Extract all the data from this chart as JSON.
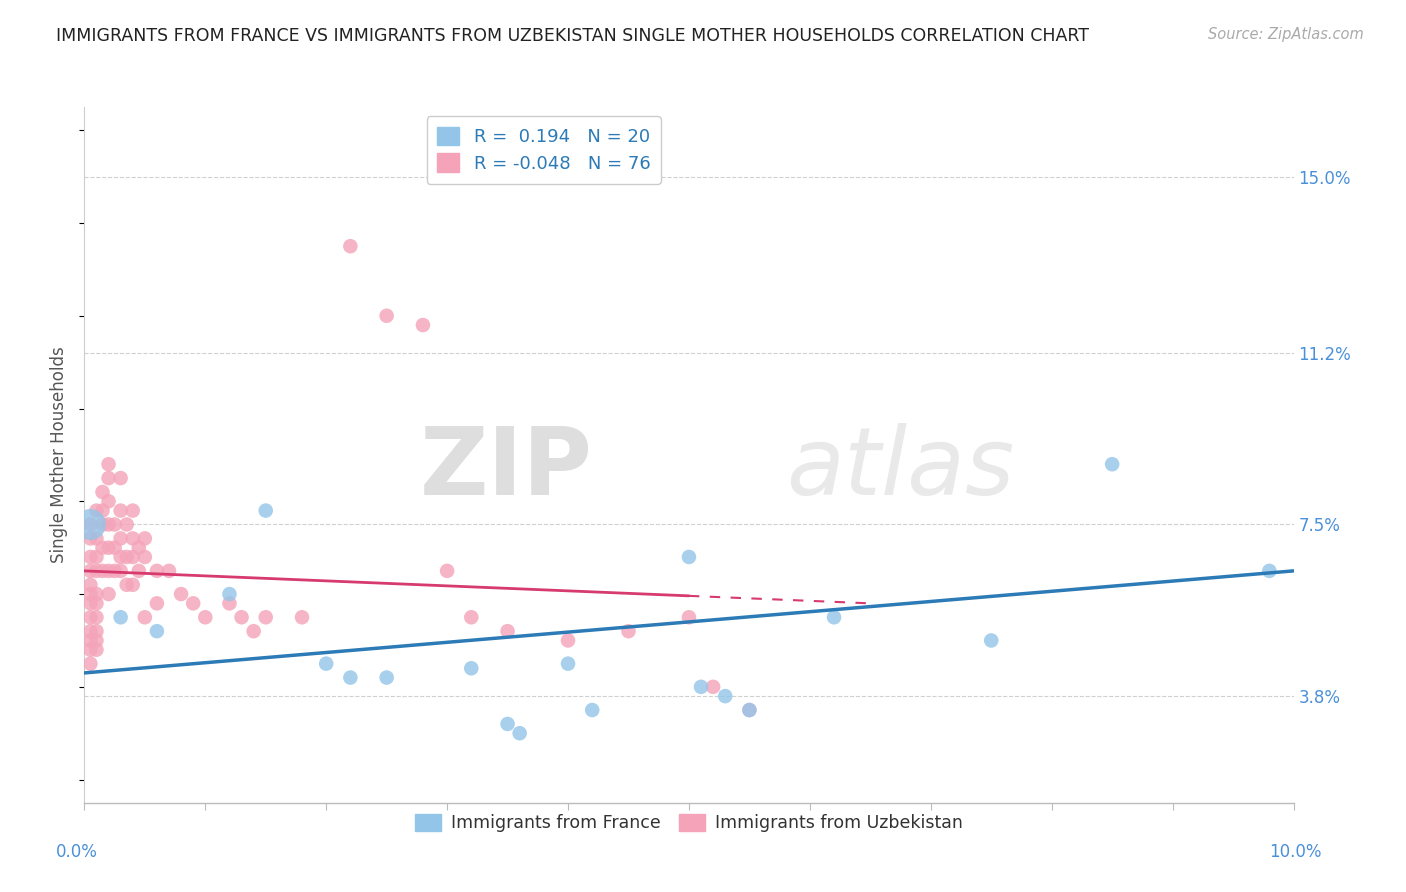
{
  "title": "IMMIGRANTS FROM FRANCE VS IMMIGRANTS FROM UZBEKISTAN SINGLE MOTHER HOUSEHOLDS CORRELATION CHART",
  "source": "Source: ZipAtlas.com",
  "ylabel": "Single Mother Households",
  "y_ticks": [
    3.8,
    7.5,
    11.2,
    15.0
  ],
  "y_tick_labels": [
    "3.8%",
    "7.5%",
    "11.2%",
    "15.0%"
  ],
  "xlim": [
    0.0,
    10.0
  ],
  "ylim": [
    1.5,
    16.5
  ],
  "france_color": "#92c5e8",
  "uzbekistan_color": "#f4a3b8",
  "france_R": 0.194,
  "france_N": 20,
  "uzbekistan_R": -0.048,
  "uzbekistan_N": 76,
  "france_points": [
    [
      0.3,
      5.5
    ],
    [
      0.6,
      5.2
    ],
    [
      1.2,
      6.0
    ],
    [
      1.5,
      7.8
    ],
    [
      2.0,
      4.5
    ],
    [
      2.2,
      4.2
    ],
    [
      2.5,
      4.2
    ],
    [
      3.2,
      4.4
    ],
    [
      3.5,
      3.2
    ],
    [
      3.6,
      3.0
    ],
    [
      4.0,
      4.5
    ],
    [
      4.2,
      3.5
    ],
    [
      5.0,
      6.8
    ],
    [
      5.1,
      4.0
    ],
    [
      5.3,
      3.8
    ],
    [
      5.5,
      3.5
    ],
    [
      6.2,
      5.5
    ],
    [
      7.5,
      5.0
    ],
    [
      8.5,
      8.8
    ],
    [
      9.8,
      6.5
    ]
  ],
  "uzbekistan_points": [
    [
      0.05,
      7.5
    ],
    [
      0.05,
      7.2
    ],
    [
      0.05,
      6.8
    ],
    [
      0.05,
      6.5
    ],
    [
      0.05,
      6.2
    ],
    [
      0.05,
      6.0
    ],
    [
      0.05,
      5.8
    ],
    [
      0.05,
      5.5
    ],
    [
      0.05,
      5.2
    ],
    [
      0.05,
      5.0
    ],
    [
      0.05,
      4.8
    ],
    [
      0.05,
      4.5
    ],
    [
      0.1,
      7.8
    ],
    [
      0.1,
      7.2
    ],
    [
      0.1,
      6.8
    ],
    [
      0.1,
      6.5
    ],
    [
      0.1,
      6.0
    ],
    [
      0.1,
      5.8
    ],
    [
      0.1,
      5.5
    ],
    [
      0.1,
      5.2
    ],
    [
      0.1,
      5.0
    ],
    [
      0.1,
      4.8
    ],
    [
      0.15,
      8.2
    ],
    [
      0.15,
      7.8
    ],
    [
      0.15,
      7.5
    ],
    [
      0.15,
      7.0
    ],
    [
      0.15,
      6.5
    ],
    [
      0.2,
      8.8
    ],
    [
      0.2,
      8.5
    ],
    [
      0.2,
      8.0
    ],
    [
      0.2,
      7.5
    ],
    [
      0.2,
      7.0
    ],
    [
      0.2,
      6.5
    ],
    [
      0.2,
      6.0
    ],
    [
      0.25,
      7.5
    ],
    [
      0.25,
      7.0
    ],
    [
      0.25,
      6.5
    ],
    [
      0.3,
      8.5
    ],
    [
      0.3,
      7.8
    ],
    [
      0.3,
      7.2
    ],
    [
      0.3,
      6.8
    ],
    [
      0.3,
      6.5
    ],
    [
      0.35,
      7.5
    ],
    [
      0.35,
      6.8
    ],
    [
      0.35,
      6.2
    ],
    [
      0.4,
      7.8
    ],
    [
      0.4,
      7.2
    ],
    [
      0.4,
      6.8
    ],
    [
      0.4,
      6.2
    ],
    [
      0.45,
      7.0
    ],
    [
      0.45,
      6.5
    ],
    [
      0.5,
      7.2
    ],
    [
      0.5,
      6.8
    ],
    [
      0.5,
      5.5
    ],
    [
      0.6,
      6.5
    ],
    [
      0.6,
      5.8
    ],
    [
      0.7,
      6.5
    ],
    [
      0.8,
      6.0
    ],
    [
      0.9,
      5.8
    ],
    [
      1.0,
      5.5
    ],
    [
      1.2,
      5.8
    ],
    [
      1.3,
      5.5
    ],
    [
      1.4,
      5.2
    ],
    [
      1.5,
      5.5
    ],
    [
      1.8,
      5.5
    ],
    [
      2.2,
      13.5
    ],
    [
      2.5,
      12.0
    ],
    [
      2.8,
      11.8
    ],
    [
      3.0,
      6.5
    ],
    [
      3.2,
      5.5
    ],
    [
      3.5,
      5.2
    ],
    [
      4.0,
      5.0
    ],
    [
      4.5,
      5.2
    ],
    [
      5.0,
      5.5
    ],
    [
      5.2,
      4.0
    ],
    [
      5.5,
      3.5
    ]
  ],
  "france_line_color": "#2c7bb6",
  "uzbekistan_line_color": "#d63a6e",
  "watermark_top": "ZIP",
  "watermark_bottom": "atlas",
  "watermark_color": "#d8d8d8",
  "background_color": "#ffffff",
  "grid_color": "#d0d0d0",
  "tick_label_color": "#4a90d9",
  "france_large_point_x": 0.05,
  "france_large_point_y": 7.5,
  "france_large_size": 500,
  "uzbek_line_xend": 6.5,
  "france_line_x0": 0.0,
  "france_line_x1": 10.0
}
